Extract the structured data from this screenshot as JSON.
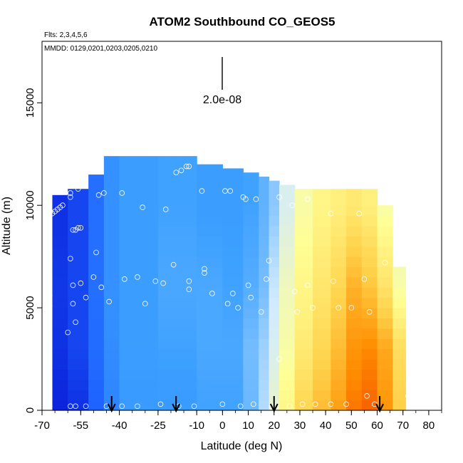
{
  "chart_data": {
    "type": "heatmap",
    "title": "ATOM2 Southbound CO_GEOS5",
    "flights_label": "Flts: 2,3,4,5,6",
    "dates_label": "MMDD: 0129,0201,0203,0205,0210",
    "scale_label": "2.0e-08",
    "xlabel": "Latitude (deg N)",
    "ylabel": "Altitude (m)",
    "xlim": [
      -70,
      85
    ],
    "ylim": [
      0,
      18000
    ],
    "x_ticks": [
      -70,
      -55,
      -40,
      -25,
      -10,
      0,
      10,
      20,
      30,
      40,
      50,
      60,
      70,
      80
    ],
    "x_tick_labels": [
      "-70",
      "-55",
      "-40",
      "-25",
      "-10",
      "0",
      "10",
      "20",
      "30",
      "40",
      "50",
      "60",
      "70",
      "80"
    ],
    "y_ticks": [
      0,
      5000,
      10000,
      15000
    ],
    "y_tick_labels": [
      "0",
      "5000",
      "10000",
      "15000"
    ],
    "color_scale": [
      "#0000c8",
      "#1e64ff",
      "#3ca0ff",
      "#d2ebff",
      "#ffff96",
      "#ffd24b",
      "#ff8c00",
      "#e10000"
    ],
    "columns": [
      {
        "lon0": -66,
        "lon1": -60,
        "top": 10500,
        "level": [
          0.05,
          0.07,
          0.08,
          0.07
        ]
      },
      {
        "lon0": -60,
        "lon1": -52,
        "top": 10800,
        "level": [
          0.07,
          0.1,
          0.1,
          0.1
        ]
      },
      {
        "lon0": -52,
        "lon1": -46,
        "top": 11500,
        "level": [
          0.14,
          0.16,
          0.17,
          0.17
        ]
      },
      {
        "lon0": -46,
        "lon1": -40,
        "top": 12400,
        "level": [
          0.22,
          0.24,
          0.25,
          0.25
        ]
      },
      {
        "lon0": -40,
        "lon1": -25,
        "top": 12400,
        "level": [
          0.27,
          0.28,
          0.28,
          0.28
        ]
      },
      {
        "lon0": -25,
        "lon1": -10,
        "top": 12400,
        "level": [
          0.27,
          0.29,
          0.3,
          0.29
        ]
      },
      {
        "lon0": -10,
        "lon1": 0,
        "top": 12000,
        "level": [
          0.29,
          0.3,
          0.3,
          0.28
        ]
      },
      {
        "lon0": 0,
        "lon1": 8,
        "top": 11800,
        "level": [
          0.29,
          0.3,
          0.29,
          0.28
        ]
      },
      {
        "lon0": 8,
        "lon1": 14,
        "top": 11600,
        "level": [
          0.33,
          0.34,
          0.31,
          0.29
        ]
      },
      {
        "lon0": 14,
        "lon1": 18,
        "top": 11400,
        "level": [
          0.4,
          0.38,
          0.34,
          0.32
        ]
      },
      {
        "lon0": 18,
        "lon1": 22,
        "top": 11200,
        "level": [
          0.5,
          0.45,
          0.42,
          0.36
        ]
      },
      {
        "lon0": 22,
        "lon1": 28,
        "top": 11000,
        "level": [
          0.6,
          0.55,
          0.52,
          0.45
        ]
      },
      {
        "lon0": 28,
        "lon1": 35,
        "top": 10800,
        "level": [
          0.7,
          0.64,
          0.6,
          0.55
        ]
      },
      {
        "lon0": 35,
        "lon1": 42,
        "top": 10800,
        "level": [
          0.76,
          0.7,
          0.65,
          0.6
        ]
      },
      {
        "lon0": 42,
        "lon1": 48,
        "top": 10800,
        "level": [
          0.82,
          0.76,
          0.7,
          0.62
        ]
      },
      {
        "lon0": 48,
        "lon1": 54,
        "top": 10800,
        "level": [
          0.88,
          0.84,
          0.78,
          0.64
        ]
      },
      {
        "lon0": 54,
        "lon1": 60,
        "top": 10800,
        "level": [
          0.9,
          0.86,
          0.74,
          0.62
        ]
      },
      {
        "lon0": 60,
        "lon1": 66,
        "top": 10000,
        "level": [
          0.84,
          0.8,
          0.66,
          0.55
        ]
      },
      {
        "lon0": 66,
        "lon1": 71,
        "top": 7000,
        "level": [
          0.72,
          0.68,
          0.55,
          0.5
        ]
      }
    ],
    "samples": [
      [
        -68,
        10100
      ],
      [
        -67,
        9500
      ],
      [
        -66,
        9600
      ],
      [
        -65,
        9700
      ],
      [
        -64,
        9800
      ],
      [
        -63,
        9900
      ],
      [
        -62,
        10000
      ],
      [
        -59,
        10400
      ],
      [
        -59,
        10600
      ],
      [
        -58,
        8800
      ],
      [
        -57,
        8800
      ],
      [
        -56,
        8900
      ],
      [
        -55,
        8900
      ],
      [
        -57,
        11700
      ],
      [
        -55,
        11800
      ],
      [
        -53,
        12100
      ],
      [
        -52,
        12200
      ],
      [
        -56,
        10800
      ],
      [
        -48,
        10500
      ],
      [
        -46,
        10600
      ],
      [
        -39,
        10600
      ],
      [
        -31,
        9900
      ],
      [
        -22,
        9800
      ],
      [
        -18,
        11600
      ],
      [
        -16,
        11700
      ],
      [
        -14,
        11900
      ],
      [
        -13,
        11900
      ],
      [
        -8,
        10700
      ],
      [
        1,
        10700
      ],
      [
        3,
        10700
      ],
      [
        8,
        10400
      ],
      [
        9,
        10300
      ],
      [
        13,
        10300
      ],
      [
        22,
        10400
      ],
      [
        27,
        10000
      ],
      [
        33,
        10300
      ],
      [
        42,
        9600
      ],
      [
        53,
        9600
      ],
      [
        65,
        11300
      ],
      [
        68,
        11200
      ],
      [
        -59,
        7400
      ],
      [
        -49,
        7700
      ],
      [
        -19,
        7100
      ],
      [
        -7,
        6900
      ],
      [
        -7,
        6700
      ],
      [
        -58,
        6100
      ],
      [
        -55,
        6200
      ],
      [
        -53,
        5500
      ],
      [
        -50,
        6500
      ],
      [
        -47,
        6000
      ],
      [
        -38,
        6400
      ],
      [
        -33,
        6500
      ],
      [
        -26,
        6300
      ],
      [
        -23,
        6200
      ],
      [
        -13,
        6300
      ],
      [
        -13,
        5900
      ],
      [
        -4,
        5700
      ],
      [
        4,
        5700
      ],
      [
        10,
        6100
      ],
      [
        11,
        5500
      ],
      [
        17,
        6400
      ],
      [
        18,
        7300
      ],
      [
        28,
        5800
      ],
      [
        33,
        6100
      ],
      [
        43,
        6300
      ],
      [
        45,
        5000
      ],
      [
        55,
        6400
      ],
      [
        6,
        5000
      ],
      [
        2,
        5200
      ],
      [
        15,
        4800
      ],
      [
        29,
        4800
      ],
      [
        35,
        5000
      ],
      [
        57,
        4800
      ],
      [
        -67,
        5600
      ],
      [
        -67,
        5100
      ],
      [
        -58,
        5200
      ],
      [
        -57,
        4300
      ],
      [
        -60,
        3800
      ],
      [
        -44,
        5300
      ],
      [
        -30,
        5200
      ],
      [
        50,
        5000
      ],
      [
        63,
        7200
      ],
      [
        -67,
        200
      ],
      [
        -59,
        200
      ],
      [
        -57,
        200
      ],
      [
        -53,
        200
      ],
      [
        -45,
        200
      ],
      [
        -39,
        200
      ],
      [
        -33,
        200
      ],
      [
        -24,
        300
      ],
      [
        -17,
        200
      ],
      [
        -11,
        200
      ],
      [
        0,
        300
      ],
      [
        7,
        200
      ],
      [
        12,
        300
      ],
      [
        19,
        200
      ],
      [
        21,
        200
      ],
      [
        26,
        200
      ],
      [
        31,
        300
      ],
      [
        36,
        300
      ],
      [
        42,
        300
      ],
      [
        48,
        300
      ],
      [
        59,
        300
      ],
      [
        22,
        2500
      ],
      [
        56,
        700
      ],
      [
        72,
        700
      ]
    ],
    "flight_markers": [
      -43,
      -18,
      20,
      61
    ]
  }
}
